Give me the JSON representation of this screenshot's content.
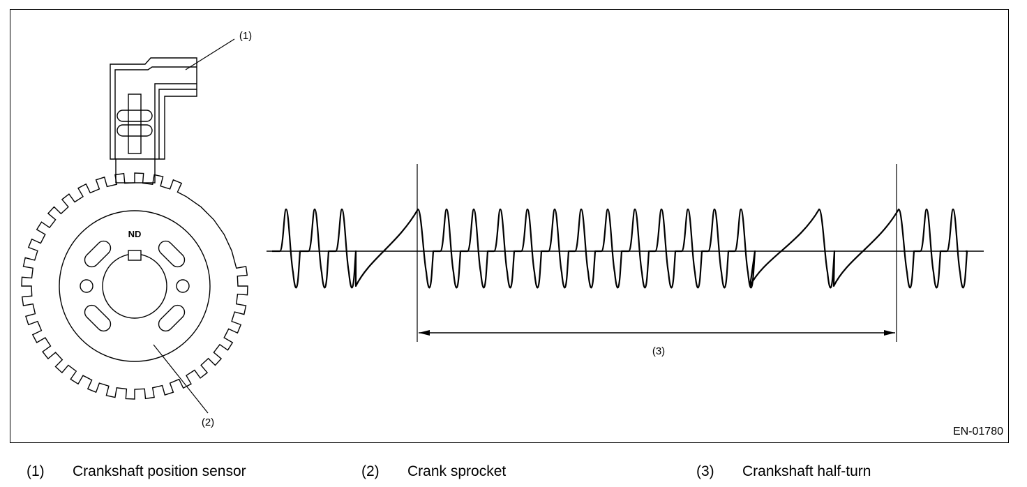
{
  "callouts": {
    "sensor": "(1)",
    "sprocket": "(2)",
    "half_turn": "(3)"
  },
  "sprocket_mark": "ND",
  "figure_id": "EN-01780",
  "legend": [
    {
      "num": "(1)",
      "label": "Crankshaft position sensor"
    },
    {
      "num": "(2)",
      "label": "Crank sprocket"
    },
    {
      "num": "(3)",
      "label": "Crankshaft half-turn"
    }
  ]
}
